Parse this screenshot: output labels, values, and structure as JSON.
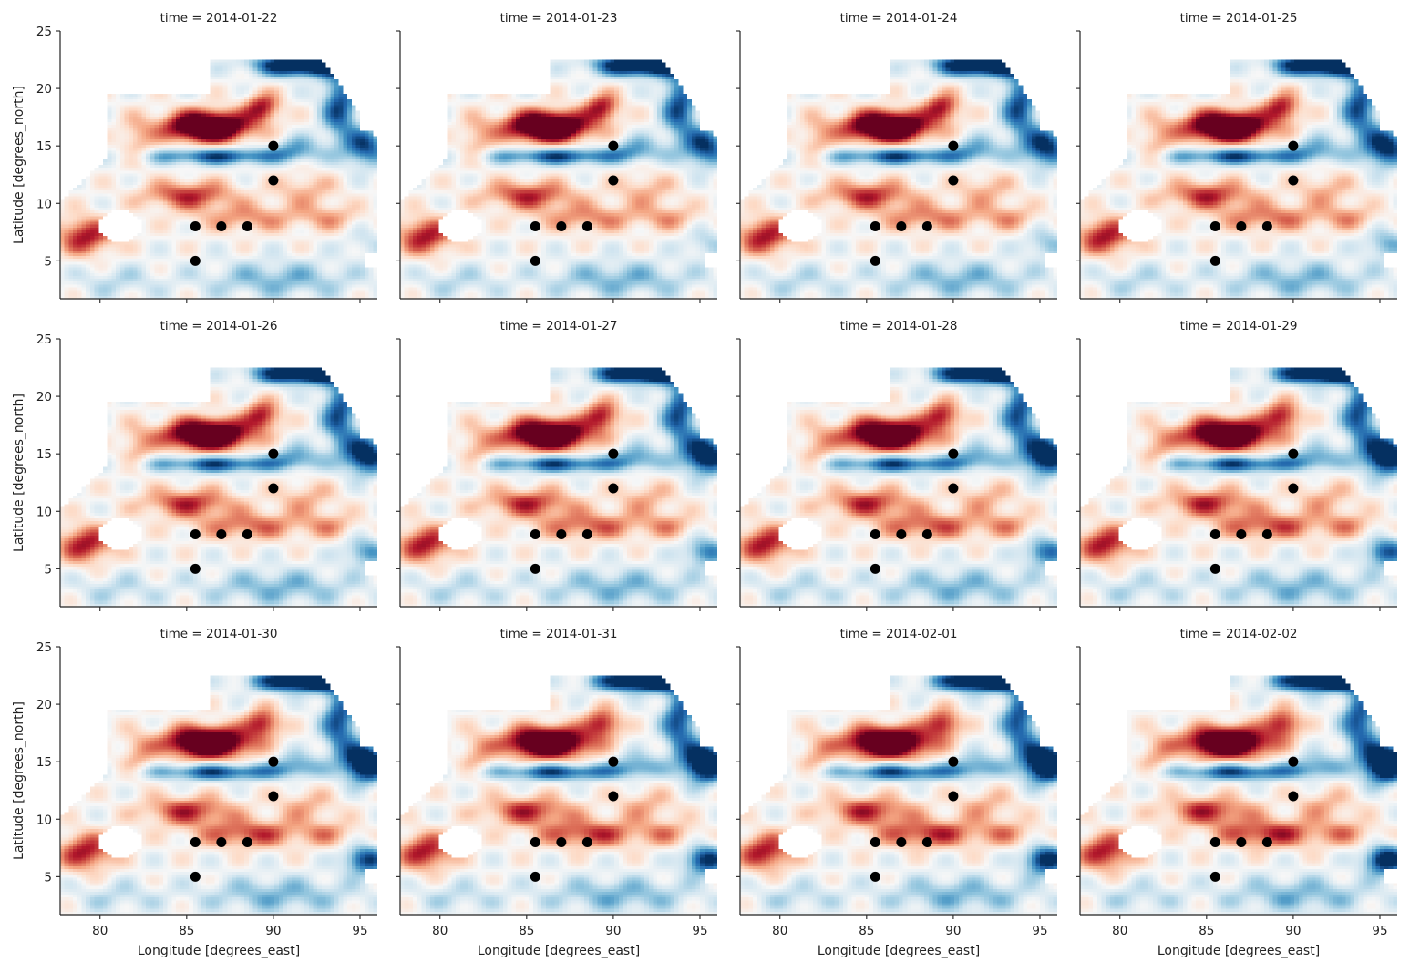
{
  "figure": {
    "xlabel": "Longitude [degrees_east]",
    "ylabel": "Latitude [degrees_north]"
  },
  "chart_data": {
    "type": "heatmap",
    "layout": "facet grid, 3 rows x 4 columns, shared axes",
    "colormap": "RdBu_r (red = positive, blue = negative, white = near zero / missing)",
    "colorbar": "none shown",
    "xlabel": "Longitude [degrees_east]",
    "ylabel": "Latitude [degrees_north]",
    "xlim": [
      77.7,
      96.0
    ],
    "ylim": [
      1.7,
      25.0
    ],
    "xticks": [
      80,
      85,
      90,
      95
    ],
    "yticks": [
      5,
      10,
      15,
      20,
      25
    ],
    "grid": false,
    "panels": [
      {
        "title": "time = 2014-01-22"
      },
      {
        "title": "time = 2014-01-23"
      },
      {
        "title": "time = 2014-01-24"
      },
      {
        "title": "time = 2014-01-25"
      },
      {
        "title": "time = 2014-01-26"
      },
      {
        "title": "time = 2014-01-27"
      },
      {
        "title": "time = 2014-01-28"
      },
      {
        "title": "time = 2014-01-29"
      },
      {
        "title": "time = 2014-01-30"
      },
      {
        "title": "time = 2014-01-31"
      },
      {
        "title": "time = 2014-02-01"
      },
      {
        "title": "time = 2014-02-02"
      }
    ],
    "points": {
      "type": "scatter",
      "color": "#000000",
      "x": [
        90,
        90,
        85.5,
        87,
        88.5,
        85.5
      ],
      "y": [
        15,
        12,
        8,
        8,
        8,
        5
      ]
    }
  }
}
